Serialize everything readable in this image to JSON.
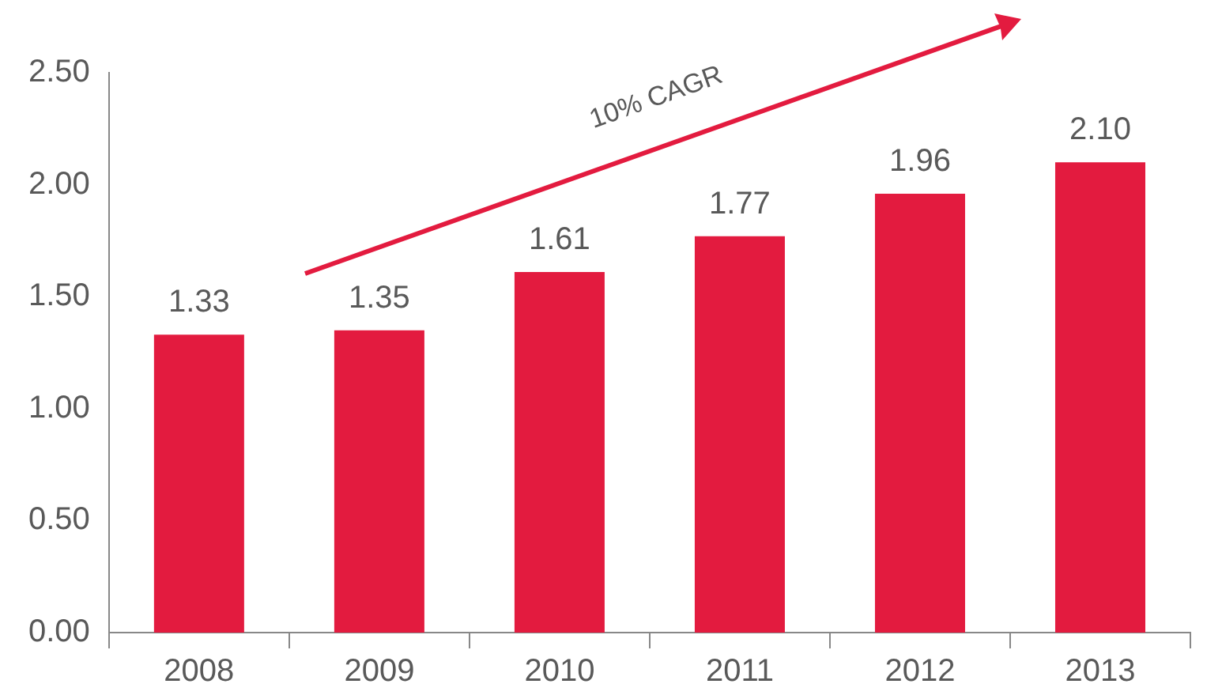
{
  "chart_data": {
    "type": "bar",
    "categories": [
      "2008",
      "2009",
      "2010",
      "2011",
      "2012",
      "2013"
    ],
    "values": [
      1.33,
      1.35,
      1.61,
      1.77,
      1.96,
      2.1
    ],
    "value_labels": [
      "1.33",
      "1.35",
      "1.61",
      "1.77",
      "1.96",
      "2.10"
    ],
    "color": "#e31b3f",
    "ylim": [
      0,
      2.5
    ],
    "yticks": [
      {
        "value": 0,
        "label": "0.00"
      },
      {
        "value": 0.5,
        "label": "0.50"
      },
      {
        "value": 1,
        "label": "1.00"
      },
      {
        "value": 1.5,
        "label": "1.50"
      },
      {
        "value": 2,
        "label": "2.00"
      },
      {
        "value": 2.5,
        "label": "2.50"
      }
    ],
    "grid": false,
    "legend": false,
    "annotations": [
      "10% CAGR"
    ]
  }
}
